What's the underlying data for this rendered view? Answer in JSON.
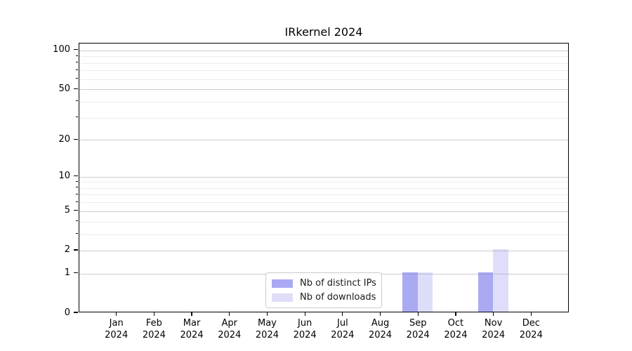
{
  "title": "IRkernel 2024",
  "chart_data": {
    "type": "bar",
    "title": "IRkernel 2024",
    "categories": [
      "Jan",
      "Feb",
      "Mar",
      "Apr",
      "May",
      "Jun",
      "Jul",
      "Aug",
      "Sep",
      "Oct",
      "Nov",
      "Dec"
    ],
    "year_label": "2024",
    "series": [
      {
        "name": "Nb of distinct IPs",
        "key": "distinct-ips",
        "color": "#a9a9f4",
        "bar_fill": "rgba(124,124,237,0.65)",
        "values": [
          0,
          0,
          0,
          0,
          0,
          0,
          0,
          0,
          1,
          0,
          1,
          0
        ]
      },
      {
        "name": "Nb of downloads",
        "key": "downloads",
        "color": "#dedef9",
        "bar_fill": "rgba(160,160,240,0.35)",
        "values": [
          0,
          0,
          0,
          0,
          0,
          0,
          0,
          0,
          1,
          0,
          2,
          0
        ]
      }
    ],
    "yscale": "log1p",
    "ylim": [
      0,
      113
    ],
    "y_major_ticks": [
      0,
      1,
      2,
      5,
      10,
      20,
      50,
      100
    ],
    "y_minor_gridlines": [
      3,
      4,
      6,
      7,
      8,
      9,
      30,
      40,
      60,
      70,
      80,
      90
    ],
    "grid": "horizontal",
    "legend_position": "bottom-center"
  },
  "colors": {
    "grid_major": "#cbcbcb",
    "grid_minor": "#ececec",
    "axis": "#000000",
    "background": "#ffffff",
    "legend_border": "#cccccc"
  },
  "legend": {
    "items": [
      {
        "label": "Nb of distinct IPs",
        "color": "#a9a9f4"
      },
      {
        "label": "Nb of downloads",
        "color": "#dedef9"
      }
    ]
  }
}
